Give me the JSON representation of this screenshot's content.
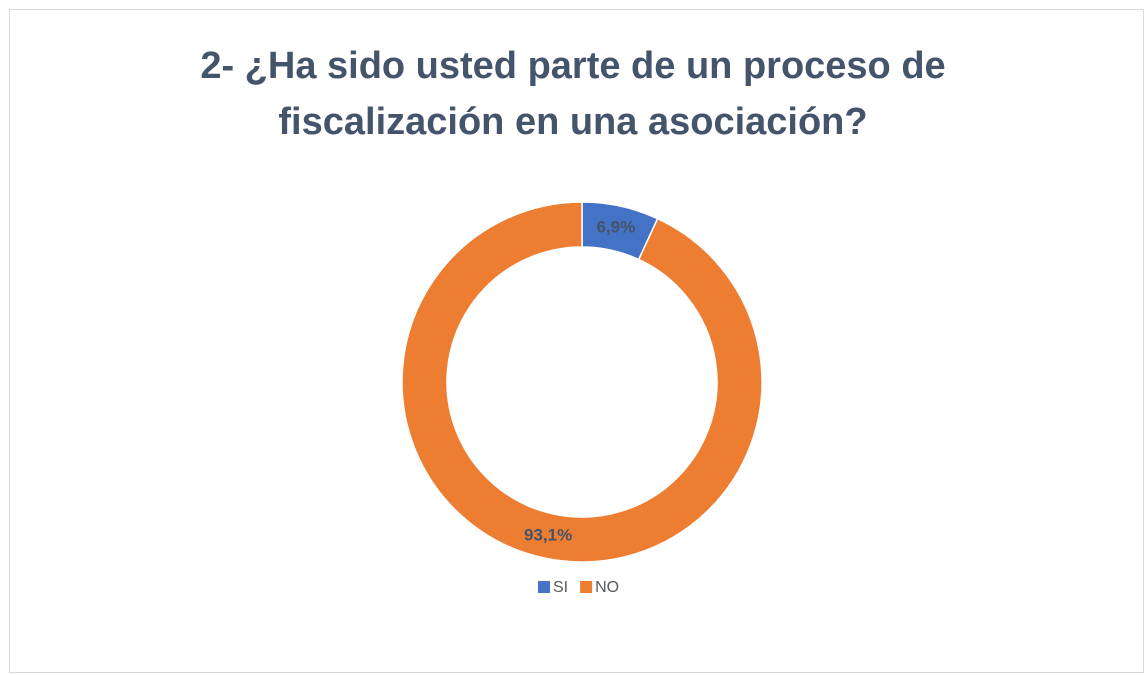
{
  "chart_data": {
    "type": "donut",
    "title": "2- ¿Ha sido usted parte de un proceso de fiscalización en una asociación?",
    "categories": [
      "SI",
      "NO"
    ],
    "values": [
      6.9,
      93.1
    ],
    "value_labels": [
      "6,9%",
      "93,1%"
    ],
    "colors": [
      "#4472c4",
      "#ed7d31"
    ],
    "legend": "bottom"
  }
}
